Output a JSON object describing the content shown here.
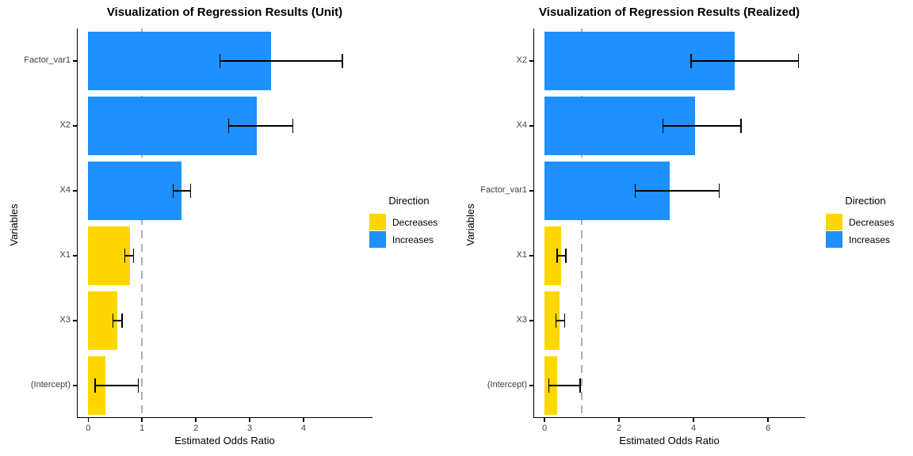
{
  "colors": {
    "increases": "#1E90FF",
    "decreases": "#FFD700",
    "reference_line": "#AEAEAE",
    "error_bar": "#000000",
    "axis": "#000000",
    "tick_text": "#404040"
  },
  "legend": {
    "title": "Direction",
    "items": [
      {
        "label": "Decreases",
        "color_key": "decreases"
      },
      {
        "label": "Increases",
        "color_key": "increases"
      }
    ]
  },
  "chart_data": [
    {
      "type": "bar",
      "orientation": "horizontal",
      "title": "Visualization of Regression Results (Unit)",
      "xlabel": "Estimated Odds Ratio",
      "ylabel": "Variables",
      "grid": false,
      "legend_position": "right",
      "xlim": [
        -0.21,
        5.28
      ],
      "xticks": [
        0,
        1,
        2,
        3,
        4
      ],
      "reference_line_x": 1,
      "categories": [
        "Factor_var1",
        "X2",
        "X4",
        "X1",
        "X3",
        "(Intercept)"
      ],
      "values": [
        3.4,
        3.13,
        1.73,
        0.78,
        0.54,
        0.32
      ],
      "ci_low": [
        2.45,
        2.61,
        1.58,
        0.68,
        0.46,
        0.13
      ],
      "ci_high": [
        4.72,
        3.8,
        1.9,
        0.84,
        0.63,
        0.93
      ],
      "direction": [
        "Increases",
        "Increases",
        "Increases",
        "Decreases",
        "Decreases",
        "Decreases"
      ]
    },
    {
      "type": "bar",
      "orientation": "horizontal",
      "title": "Visualization of Regression Results (Realized)",
      "xlabel": "Estimated Odds Ratio",
      "ylabel": "Variables",
      "grid": false,
      "legend_position": "right",
      "xlim": [
        -0.3,
        7.0
      ],
      "xticks": [
        0,
        2,
        4,
        6
      ],
      "reference_line_x": 1,
      "categories": [
        "X2",
        "X4",
        "Factor_var1",
        "X1",
        "X3",
        "(Intercept)"
      ],
      "values": [
        5.11,
        4.05,
        3.36,
        0.45,
        0.4,
        0.33
      ],
      "ci_low": [
        3.94,
        3.18,
        2.44,
        0.34,
        0.31,
        0.11
      ],
      "ci_high": [
        6.82,
        5.28,
        4.69,
        0.57,
        0.54,
        0.96
      ],
      "direction": [
        "Increases",
        "Increases",
        "Increases",
        "Decreases",
        "Decreases",
        "Decreases"
      ]
    }
  ]
}
